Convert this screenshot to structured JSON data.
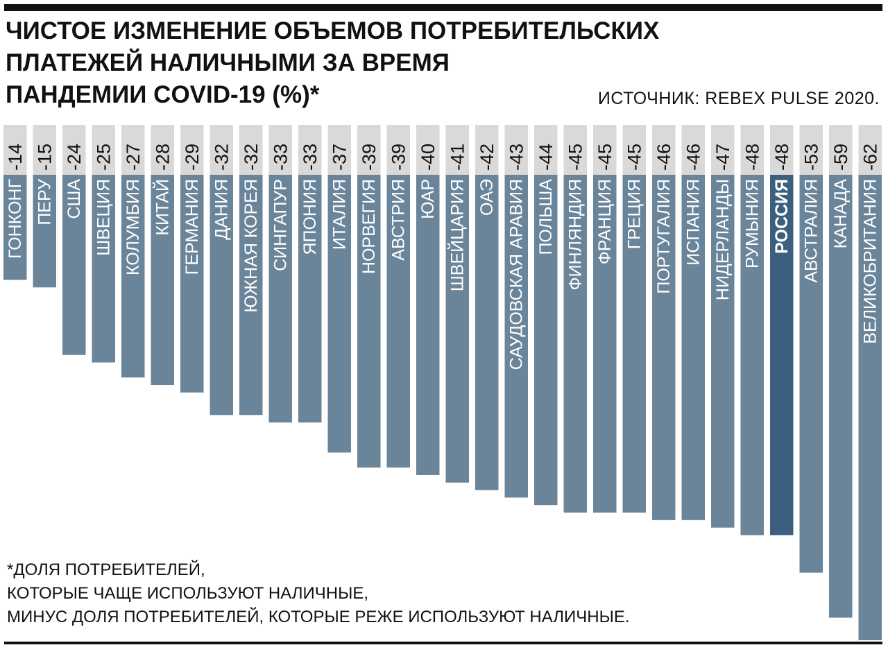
{
  "title": "ЧИСТОЕ ИЗМЕНЕНИЕ ОБЪЕМОВ ПОТРЕБИТЕЛЬСКИХ\nПЛАТЕЖЕЙ НАЛИЧНЫМИ ЗА ВРЕМЯ\nПАНДЕМИИ COVID-19 (%)*",
  "source": "ИСТОЧНИК: REBEX PULSE 2020.",
  "footnote": "*ДОЛЯ ПОТРЕБИТЕЛЕЙ,\nКОТОРЫЕ ЧАЩЕ ИСПОЛЬЗУЮТ НАЛИЧНЫЕ,\nМИНУС ДОЛЯ ПОТРЕБИТЕЛЕЙ, КОТОРЫЕ РЕЖЕ ИСПОЛЬЗУЮТ НАЛИЧНЫЕ.",
  "chart_data": {
    "type": "bar",
    "categories": [
      "ГОНКОНГ",
      "ПЕРУ",
      "США",
      "ШВЕЦИЯ",
      "КОЛУМБИЯ",
      "КИТАЙ",
      "ГЕРМАНИЯ",
      "ДАНИЯ",
      "ЮЖНАЯ КОРЕЯ",
      "СИНГАПУР",
      "ЯПОНИЯ",
      "ИТАЛИЯ",
      "НОРВЕГИЯ",
      "АВСТРИЯ",
      "ЮАР",
      "ШВЕЙЦАРИЯ",
      "ОАЭ",
      "САУДОВСКАЯ АРАВИЯ",
      "ПОЛЬША",
      "ФИНЛЯНДИЯ",
      "ФРАНЦИЯ",
      "ГРЕЦИЯ",
      "ПОРТУГАЛИЯ",
      "ИСПАНИЯ",
      "НИДЕРЛАНДЫ",
      "РУМЫНИЯ",
      "РОССИЯ",
      "АВСТРАЛИЯ",
      "КАНАДА",
      "ВЕЛИКОБРИТАНИЯ"
    ],
    "values": [
      -14,
      -15,
      -24,
      -25,
      -27,
      -28,
      -29,
      -32,
      -32,
      -33,
      -33,
      -37,
      -39,
      -39,
      -40,
      -41,
      -42,
      -43,
      -44,
      -45,
      -45,
      -45,
      -46,
      -46,
      -47,
      -48,
      -48,
      -53,
      -59,
      -62
    ],
    "value_labels": [
      "-14",
      "-15",
      "-24",
      "-25",
      "-27",
      "-28",
      "-29",
      "-32",
      "-32",
      "-33",
      "-33",
      "-37",
      "-39",
      "-39",
      "-40",
      "-41",
      "-42",
      "-43",
      "-44",
      "-45",
      "-45",
      "-45",
      "-46",
      "-46",
      "-47",
      "-48",
      "-48",
      "-53",
      "-59",
      "-62"
    ],
    "highlight": "РОССИЯ",
    "colors": {
      "bar": "#6a8499",
      "highlight": "#3d5f7e",
      "label_band": "#d9d9d9"
    },
    "ylim": [
      -62,
      0
    ],
    "grid": false,
    "legend": "none"
  }
}
